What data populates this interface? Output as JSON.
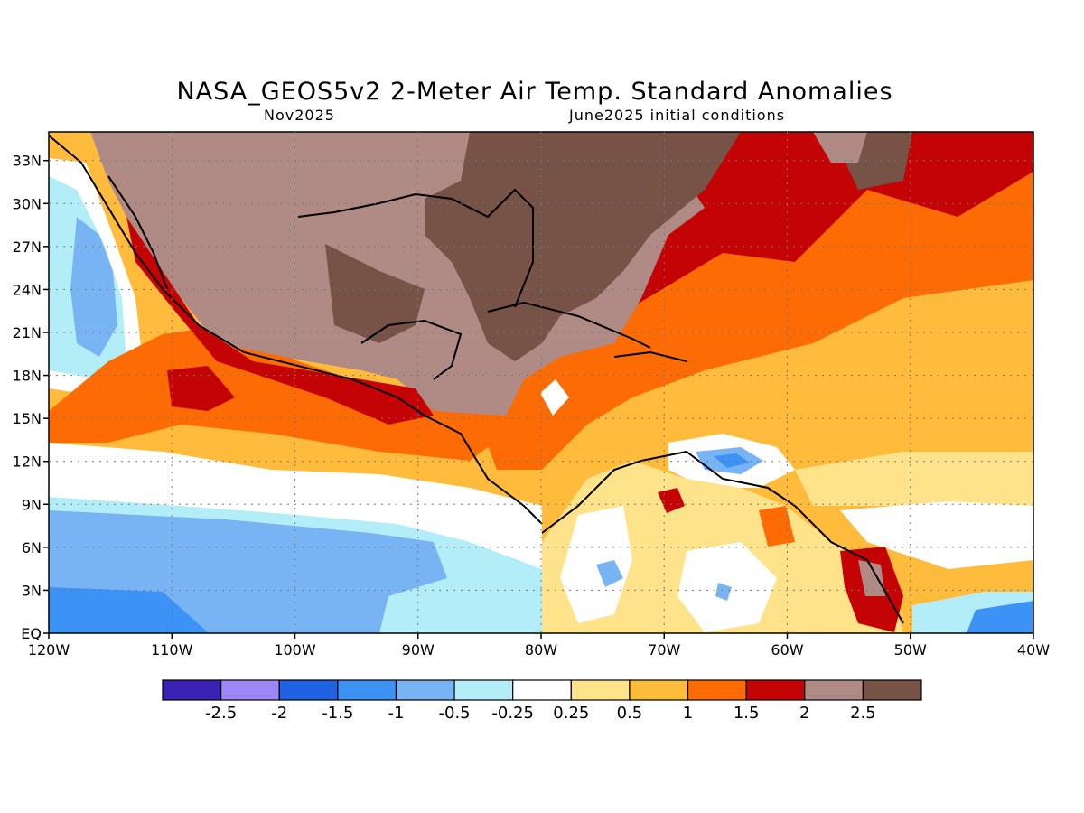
{
  "header": {
    "title": "NASA_GEOS5v2 2-Meter Air Temp. Standard Anomalies",
    "valid_month": "Nov2025",
    "init_conditions": "June2025 initial conditions"
  },
  "map": {
    "lon_range": [
      -120,
      -40
    ],
    "lat_range": [
      0,
      35
    ],
    "lon_ticks": [
      "120W",
      "110W",
      "100W",
      "90W",
      "80W",
      "70W",
      "60W",
      "50W",
      "40W"
    ],
    "lat_ticks": [
      "EQ",
      "3N",
      "6N",
      "9N",
      "12N",
      "15N",
      "18N",
      "21N",
      "24N",
      "27N",
      "30N",
      "33N"
    ],
    "gridlines": "dotted"
  },
  "colorbar": {
    "colors": [
      "#3c22b4",
      "#9e86f7",
      "#1f62e4",
      "#3c93f5",
      "#78b4f4",
      "#b3eef8",
      "#ffffff",
      "#ffe38a",
      "#ffbb3c",
      "#fc6b04",
      "#c40404",
      "#b08a84",
      "#775246"
    ],
    "labels": [
      "-2.5",
      "-2",
      "-1.5",
      "-1",
      "-0.5",
      "-0.25",
      "0.25",
      "0.5",
      "1",
      "1.5",
      "2",
      "2.5"
    ]
  }
}
